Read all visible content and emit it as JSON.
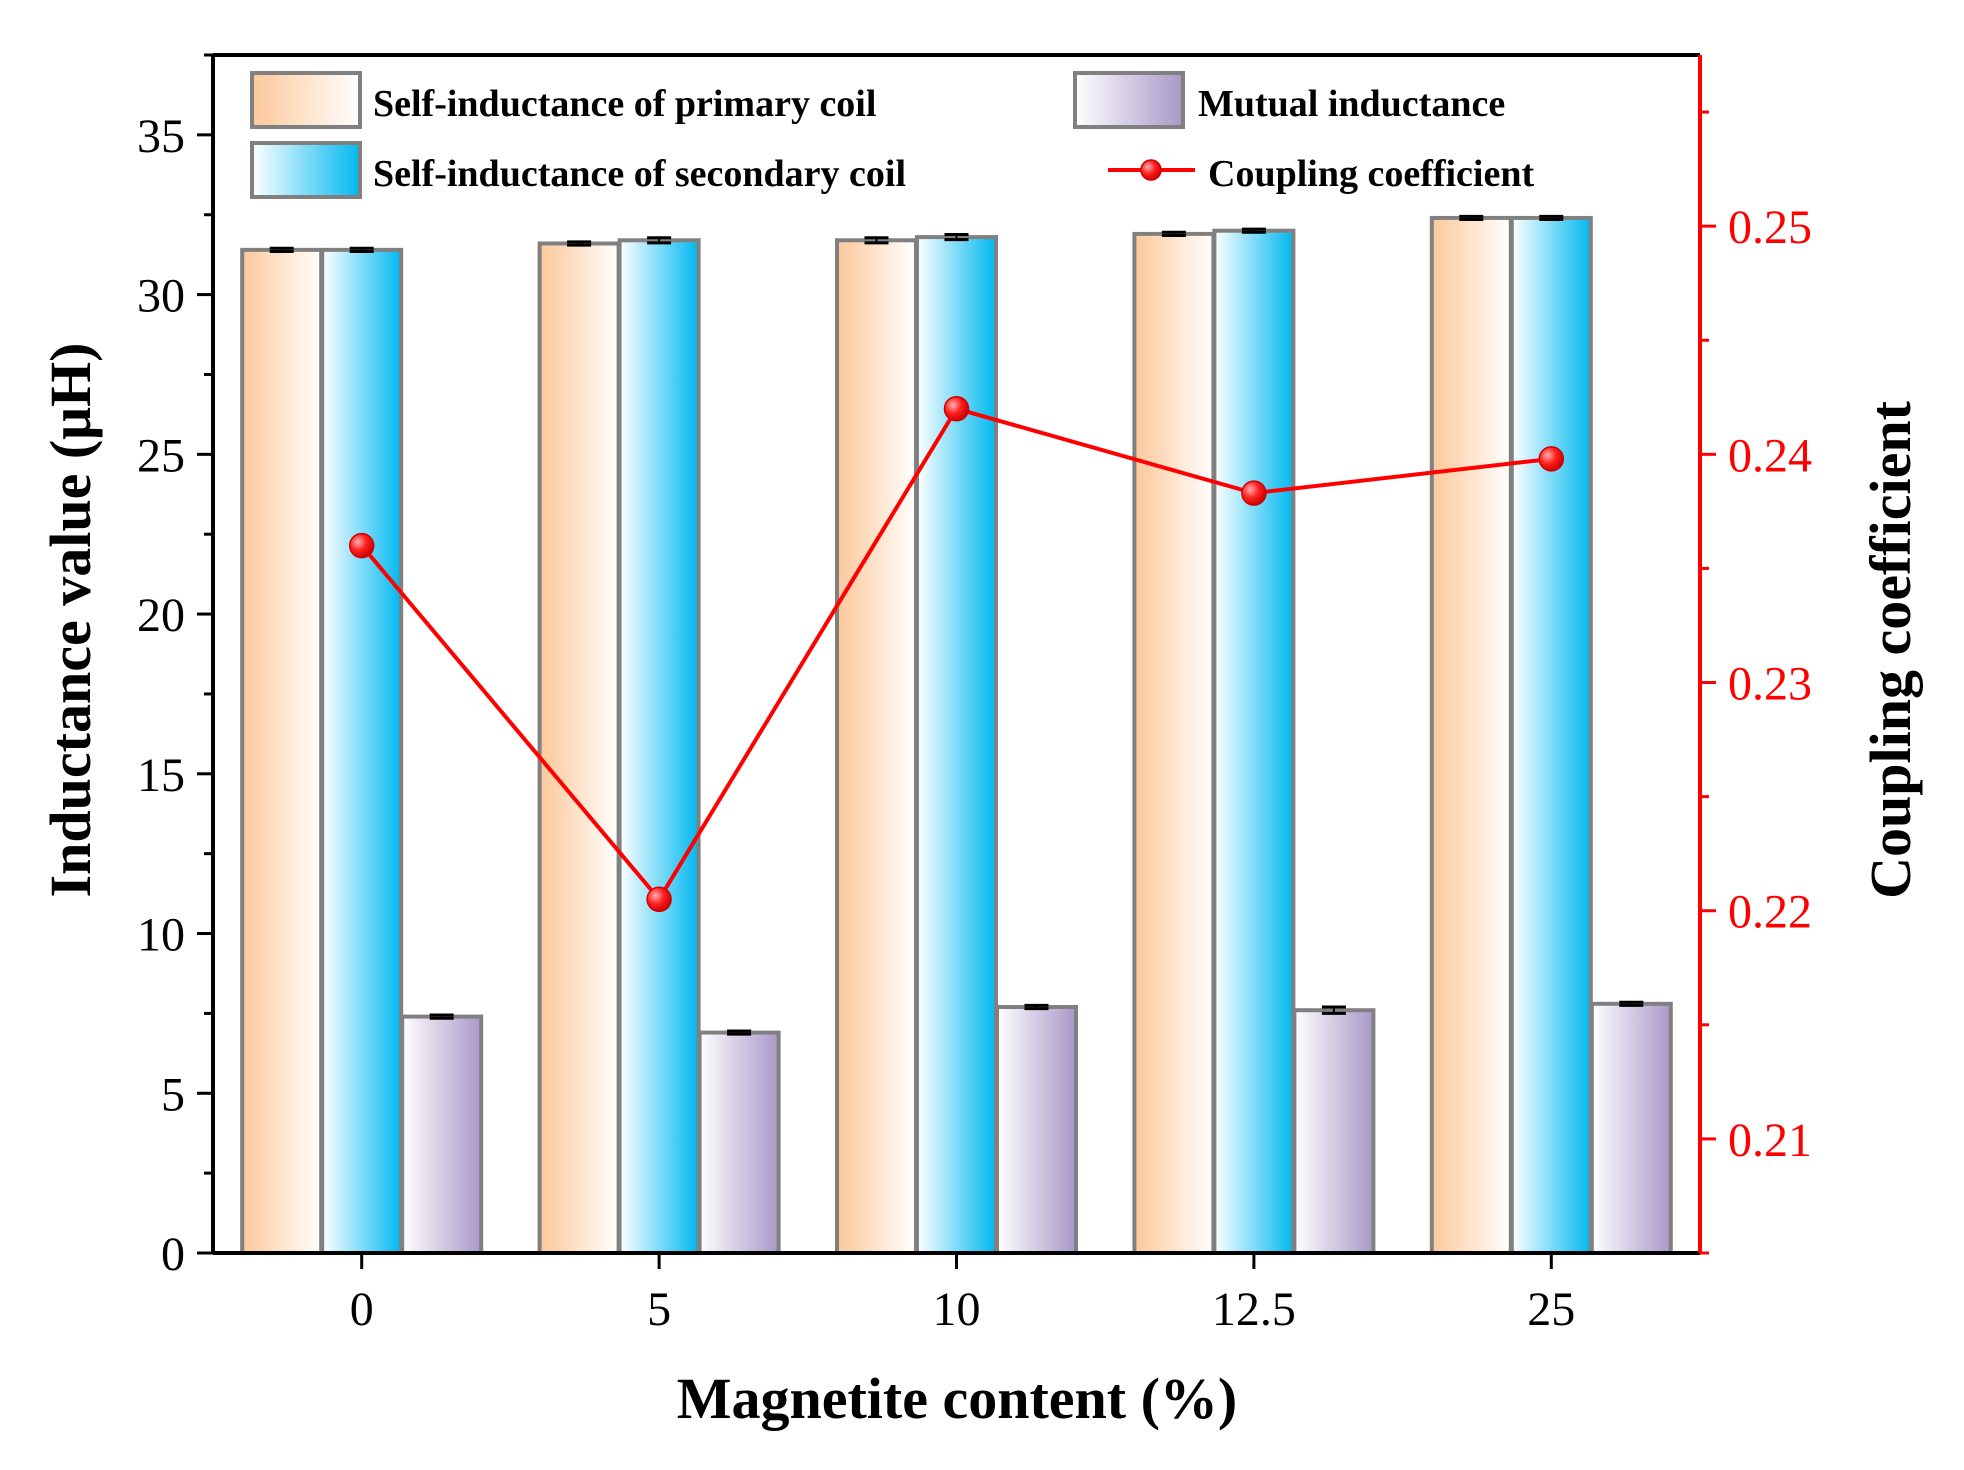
{
  "chart_data": {
    "type": "bar",
    "xlabel": "Magnetite content (%)",
    "ylabel": "Inductance value (μH)",
    "y2label": "Coupling coefficient",
    "categories": [
      "0",
      "5",
      "10",
      "12.5",
      "25"
    ],
    "ylim": [
      0,
      37.5
    ],
    "yticks": [
      0,
      5,
      10,
      15,
      20,
      25,
      30,
      35
    ],
    "y2lim": [
      0.205,
      0.2575
    ],
    "y2ticks": [
      0.21,
      0.22,
      0.23,
      0.24,
      0.25
    ],
    "legend_position": "top",
    "series": [
      {
        "name": "Self-inductance of primary coil",
        "kind": "bar",
        "color": "#fcc89a",
        "values": [
          31.4,
          31.6,
          31.7,
          31.9,
          32.4
        ],
        "errors": [
          0.05,
          0.05,
          0.08,
          0.05,
          0.05
        ]
      },
      {
        "name": "Self-inductance of secondary coil",
        "kind": "bar",
        "color": "#00b8f0",
        "values": [
          31.4,
          31.7,
          31.8,
          32.0,
          32.4
        ],
        "errors": [
          0.05,
          0.08,
          0.08,
          0.05,
          0.05
        ]
      },
      {
        "name": "Mutual inductance",
        "kind": "bar",
        "color": "#a898c8",
        "values": [
          7.4,
          6.9,
          7.7,
          7.6,
          7.8
        ],
        "errors": [
          0.05,
          0.05,
          0.05,
          0.1,
          0.05
        ]
      },
      {
        "name": "Coupling coefficient",
        "kind": "line",
        "axis": "right",
        "color": "#ff0000",
        "values": [
          0.236,
          0.2205,
          0.242,
          0.2383,
          0.2398
        ]
      }
    ]
  }
}
